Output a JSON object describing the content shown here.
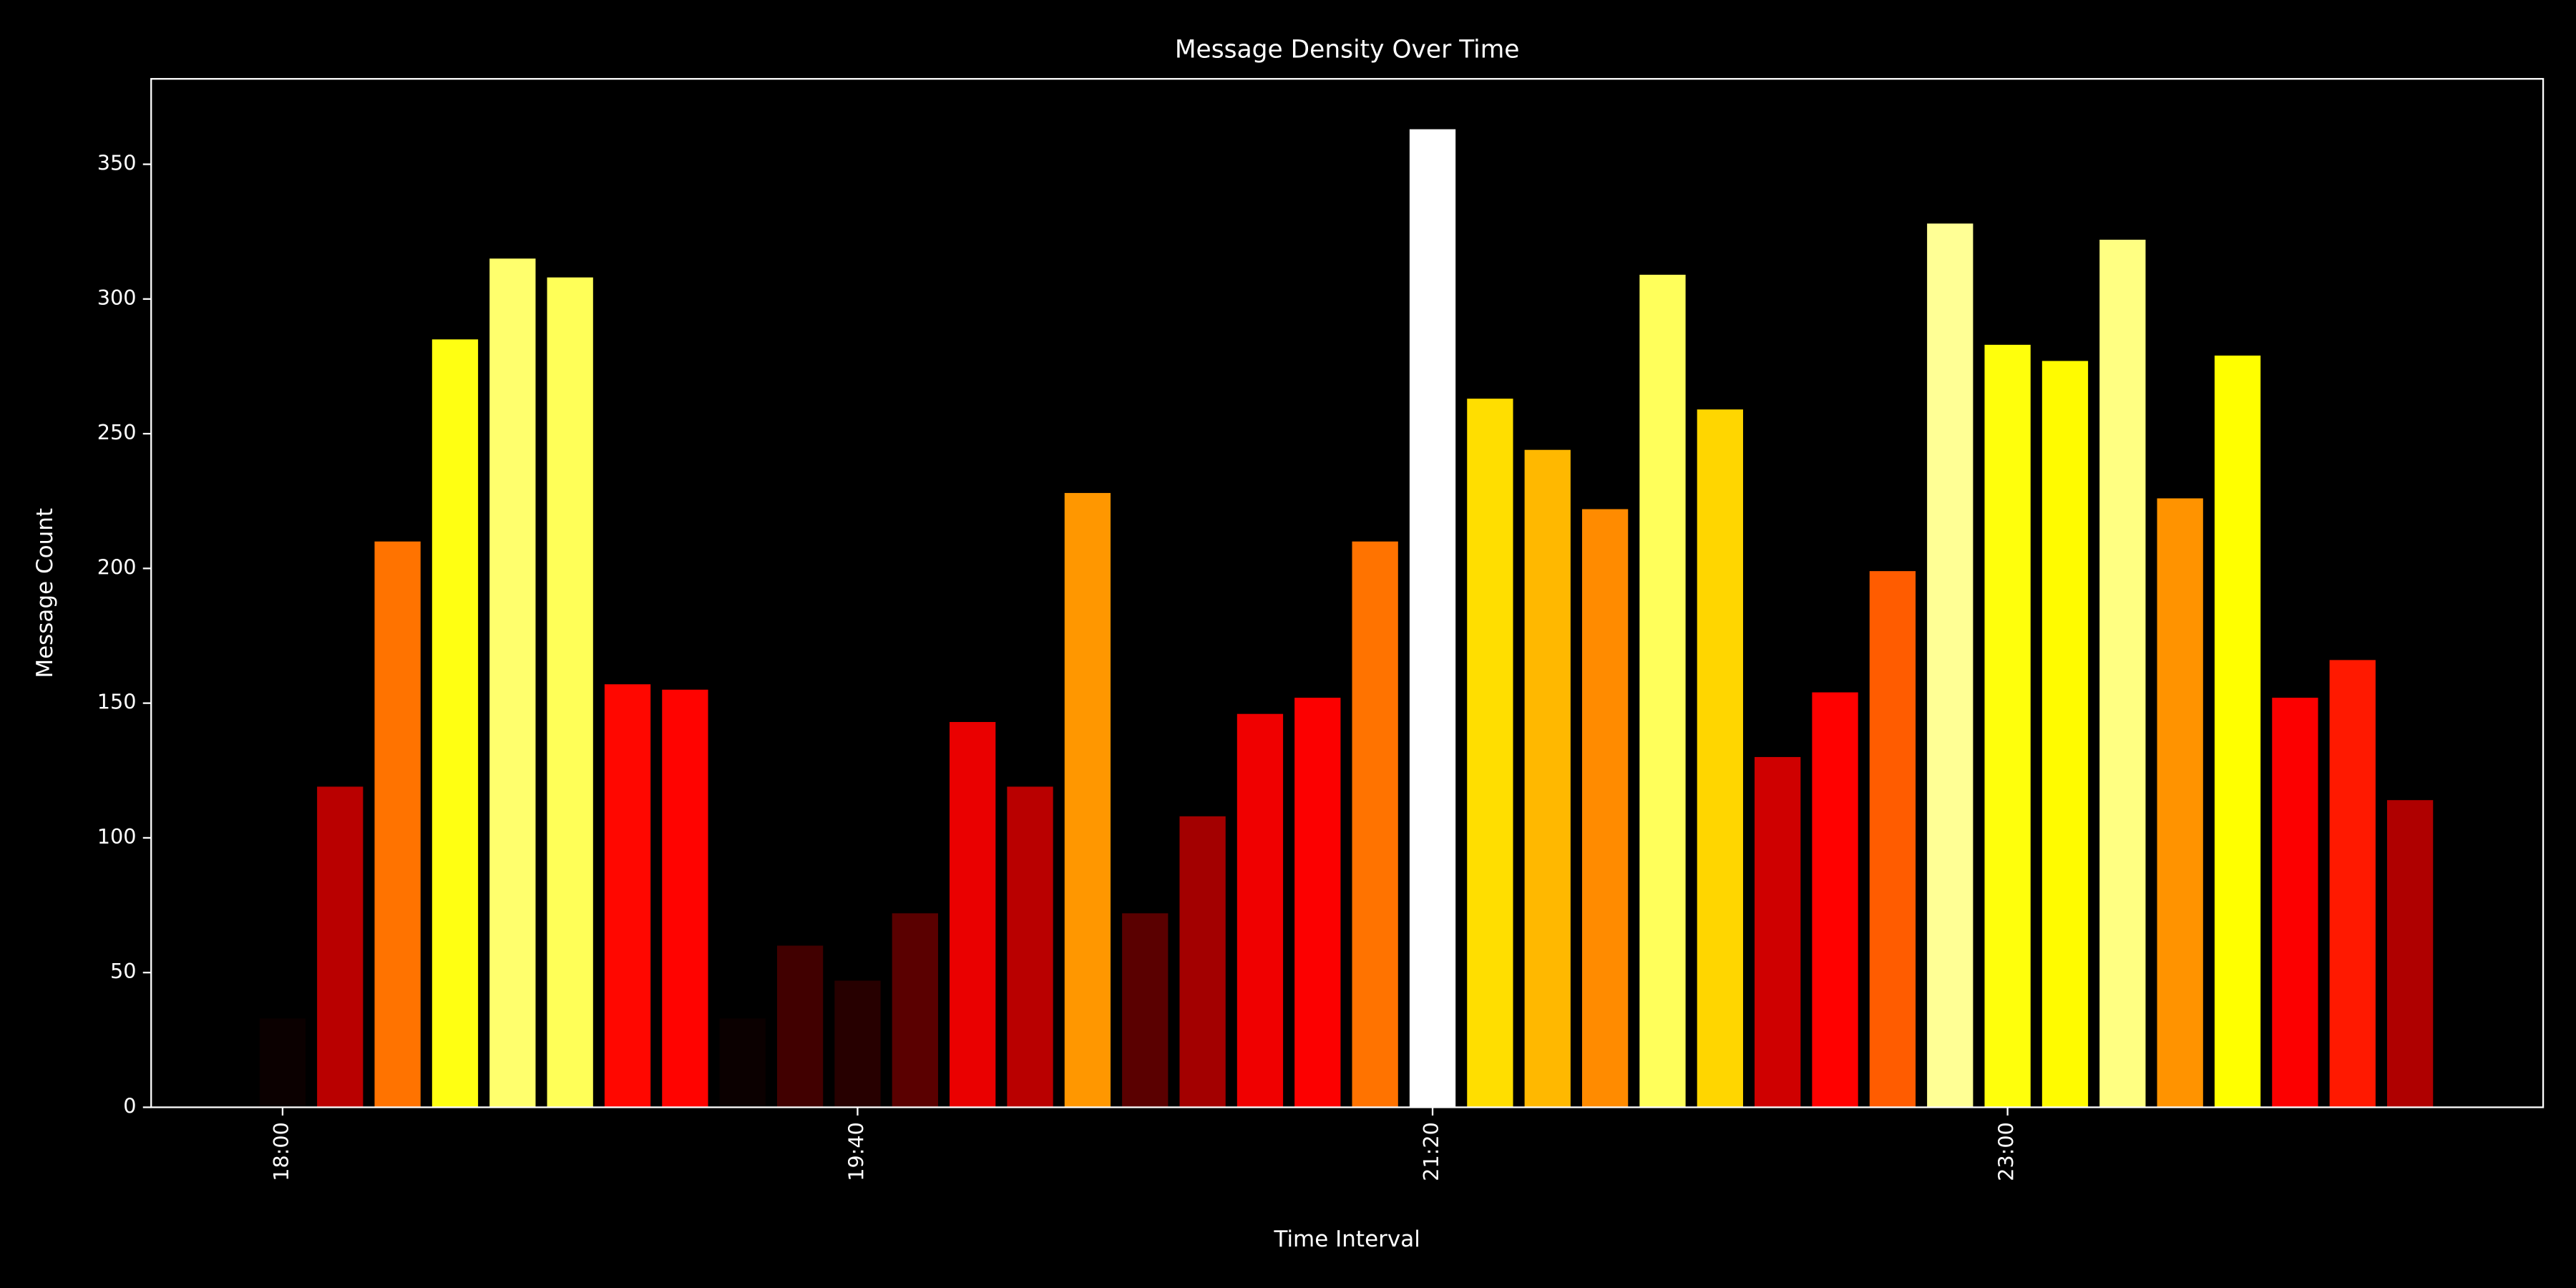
{
  "chart_data": {
    "type": "bar",
    "title": "Message Density Over Time",
    "x_label": "Time Interval",
    "y_label": "Message Count",
    "categories": [
      "18:00",
      null,
      null,
      null,
      null,
      null,
      null,
      null,
      null,
      null,
      "19:40",
      null,
      null,
      null,
      null,
      null,
      null,
      null,
      null,
      null,
      "21:20",
      null,
      null,
      null,
      null,
      null,
      null,
      null,
      null,
      null,
      "23:00",
      null,
      null,
      null,
      null,
      null,
      null,
      null
    ],
    "values": [
      33,
      119,
      210,
      285,
      315,
      308,
      157,
      155,
      33,
      60,
      47,
      72,
      143,
      119,
      228,
      72,
      108,
      146,
      152,
      210,
      363,
      263,
      244,
      222,
      309,
      259,
      130,
      154,
      199,
      328,
      283,
      277,
      322,
      226,
      279,
      152,
      166,
      114
    ],
    "colormap": "hot",
    "ylim": [
      0,
      381.7
    ],
    "yticks": [
      0,
      50,
      100,
      150,
      200,
      250,
      300,
      350
    ],
    "grid": false
  }
}
